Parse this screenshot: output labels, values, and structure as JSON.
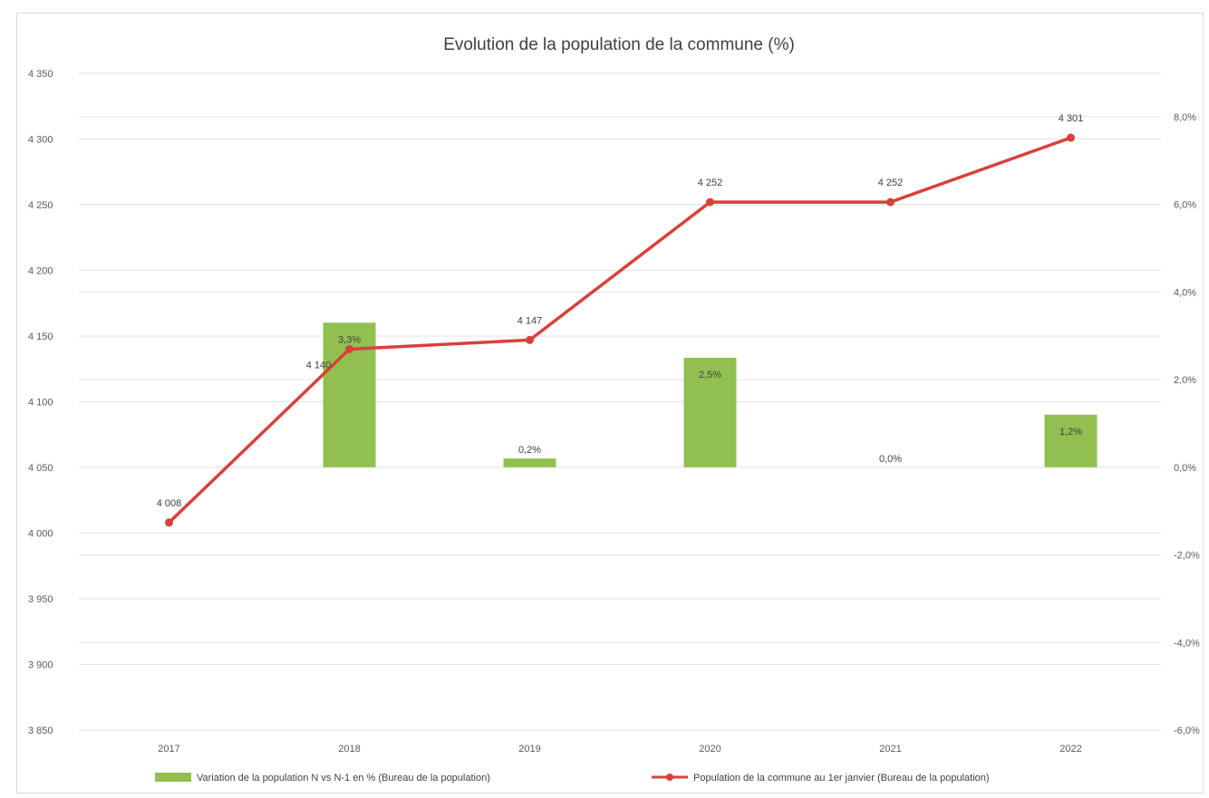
{
  "chart_data": {
    "type": "bar",
    "title": "Evolution de la population de la commune (%)",
    "categories": [
      "2017",
      "2018",
      "2019",
      "2020",
      "2021",
      "2022"
    ],
    "y_left": {
      "ylim": [
        3850,
        4350
      ],
      "ticks": [
        3850,
        3900,
        3950,
        4000,
        4050,
        4100,
        4150,
        4200,
        4250,
        4300,
        4350
      ],
      "tick_labels": [
        "3 850",
        "3 900",
        "3 950",
        "4 000",
        "4 050",
        "4 100",
        "4 150",
        "4 200",
        "4 250",
        "4 300",
        "4 350"
      ]
    },
    "y_right": {
      "ylim": [
        -6.0,
        8.0
      ],
      "ticks": [
        -6,
        -4,
        -2,
        0,
        2,
        4,
        6,
        8
      ],
      "tick_labels": [
        "-6,0%",
        "-4,0%",
        "-2,0%",
        "0,0%",
        "2,0%",
        "4,0%",
        "6,0%",
        "8,0%"
      ]
    },
    "series": [
      {
        "name": "Variation de la population N vs N-1 en % (Bureau de la population)",
        "type": "bar",
        "axis": "right",
        "color": "#92c050",
        "values": [
          null,
          3.3,
          0.2,
          2.5,
          0.0,
          1.2
        ],
        "labels": [
          "",
          "3,3%",
          "0,2%",
          "2,5%",
          "0,0%",
          "1,2%"
        ]
      },
      {
        "name": "Population de la commune au 1er janvier (Bureau de la population)",
        "type": "line",
        "axis": "left",
        "color": "#d9403a",
        "values": [
          4008,
          4140,
          4147,
          4252,
          4252,
          4301
        ],
        "labels": [
          "4 008",
          "4 140",
          "4 147",
          "4 252",
          "4 252",
          "4 301"
        ]
      }
    ],
    "legend": "bottom",
    "grid": true
  }
}
